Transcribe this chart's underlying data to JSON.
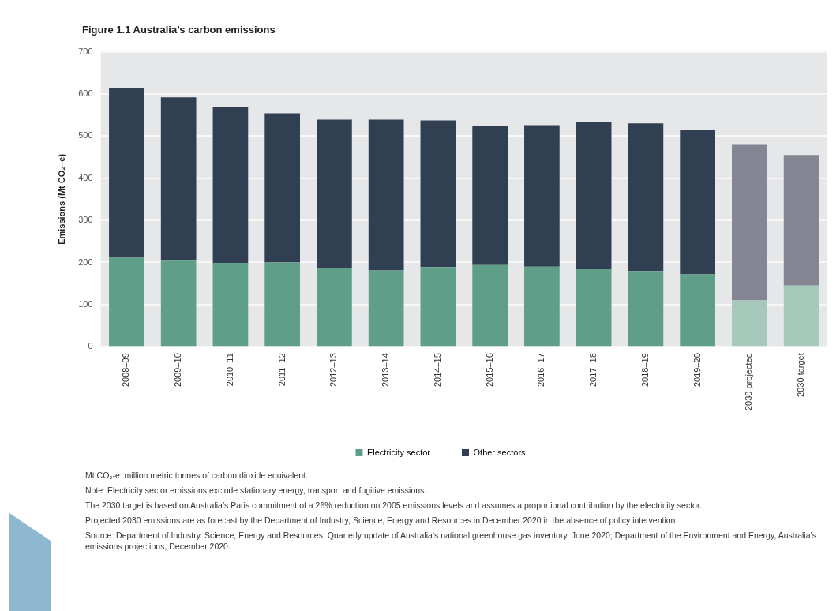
{
  "chart_data": {
    "type": "bar",
    "title": "Figure 1.1   Australia’s carbon emissions",
    "ylabel": "Emissions (Mt CO₂–e)",
    "categories": [
      "2008–09",
      "2009–10",
      "2010–11",
      "2011–12",
      "2012–13",
      "2013–14",
      "2014–15",
      "2015–16",
      "2016–17",
      "2017–18",
      "2018–19",
      "2019–20",
      "2030 projected",
      "2030 target"
    ],
    "stacked": true,
    "series": [
      {
        "name": "Electricity sector",
        "color": "#5f9f89",
        "colors": [
          "#5f9f89",
          "#5f9f89",
          "#5f9f89",
          "#5f9f89",
          "#5f9f89",
          "#5f9f89",
          "#5f9f89",
          "#5f9f89",
          "#5f9f89",
          "#5f9f89",
          "#5f9f89",
          "#5f9f89",
          "#a7c9bb",
          "#a7c9bb"
        ],
        "values": [
          211,
          206,
          199,
          200,
          187,
          181,
          189,
          194,
          190,
          184,
          180,
          172,
          110,
          145
        ]
      },
      {
        "name": "Other sectors",
        "color": "#313f52",
        "colors": [
          "#313f52",
          "#313f52",
          "#313f52",
          "#313f52",
          "#313f52",
          "#313f52",
          "#313f52",
          "#313f52",
          "#313f52",
          "#313f52",
          "#313f52",
          "#313f52",
          "#858594",
          "#858594"
        ],
        "values": [
          403,
          386,
          371,
          354,
          352,
          358,
          348,
          331,
          336,
          350,
          350,
          342,
          369,
          310
        ]
      }
    ],
    "ylim": [
      0,
      700
    ],
    "yticks": [
      0,
      100,
      200,
      300,
      400,
      500,
      600,
      700
    ],
    "grid": "y",
    "legend": "bottom",
    "annotations": [
      "Mt CO₂-e: million metric tonnes of carbon dioxide equivalent.",
      "Note: Electricity sector emissions exclude stationary energy, transport and fugitive emissions.",
      "The 2030 target is based on Australia’s Paris commitment of a 26% reduction on 2005 emissions levels and assumes a proportional contribution by the electricity sector.",
      "Projected 2030 emissions are as forecast by the Department of Industry, Science, Energy and Resources in December 2020 in the absence of policy intervention.",
      "Source: Department of Industry, Science, Energy and Resources, Quarterly update of Australia’s national greenhouse gas inventory, June 2020; Department of the Environment and Energy, Australia’s emissions projections, December 2020."
    ]
  }
}
